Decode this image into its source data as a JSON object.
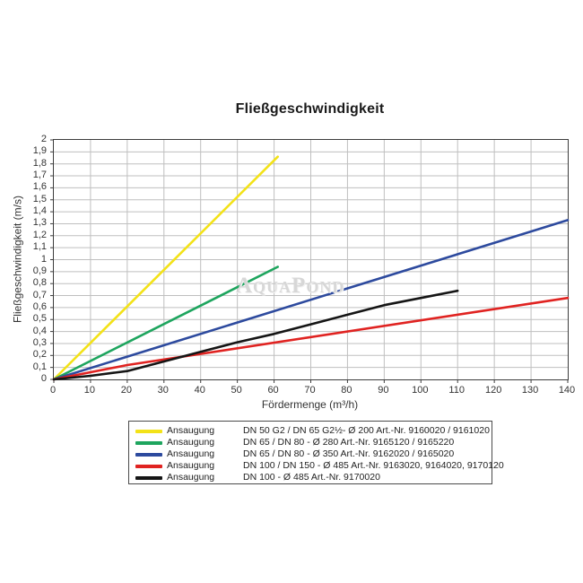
{
  "title": "Fließgeschwindigkeit",
  "watermark": "AquaPond",
  "axes": {
    "xlabel": "Fördermenge (m³/h)",
    "ylabel": "Fließgeschwindigkeit (m/s)"
  },
  "chart_data": {
    "type": "line",
    "title": "Fließgeschwindigkeit",
    "xlabel": "Fördermenge (m³/h)",
    "ylabel": "Fließgeschwindigkeit (m/s)",
    "xlim": [
      0,
      140
    ],
    "ylim": [
      0,
      2
    ],
    "grid": true,
    "legend_position": "bottom",
    "x_tick_labels": [
      "0",
      "10",
      "20",
      "30",
      "40",
      "50",
      "60",
      "70",
      "80",
      "90",
      "100",
      "110",
      "120",
      "130",
      "140"
    ],
    "y_tick_labels": [
      "2",
      "1,9",
      "1,8",
      "1,7",
      "1,6",
      "1,5",
      "1,4",
      "1,3",
      "1,2",
      "1,1",
      "1",
      "0,9",
      "0,8",
      "0,7",
      "0,6",
      "0,5",
      "0,4",
      "0,3",
      "0,2",
      "0,1",
      "0"
    ],
    "grid_color": "#bfbfbf",
    "series": [
      {
        "name": "Ansaugung DN 50 G2 / DN 65 G2½- Ø 200",
        "color": "#f3e218",
        "points": [
          [
            0,
            0
          ],
          [
            61,
            1.86
          ]
        ]
      },
      {
        "name": "Ansaugung DN 65 / DN 80 - Ø 280",
        "color": "#1ea55e",
        "points": [
          [
            0,
            0
          ],
          [
            61,
            0.94
          ]
        ]
      },
      {
        "name": "Ansaugung DN 65 / DN 80 - Ø 350",
        "color": "#2d4a9e",
        "points": [
          [
            0,
            0
          ],
          [
            140,
            1.33
          ]
        ]
      },
      {
        "name": "Ansaugung DN 100 / DN 150 - Ø 485",
        "color": "#e02321",
        "points": [
          [
            0,
            0
          ],
          [
            20,
            0.12
          ],
          [
            140,
            0.68
          ]
        ]
      },
      {
        "name": "Ansaugung DN 100 - Ø 485",
        "color": "#151515",
        "points": [
          [
            0,
            0
          ],
          [
            10,
            0.03
          ],
          [
            20,
            0.07
          ],
          [
            30,
            0.15
          ],
          [
            40,
            0.23
          ],
          [
            50,
            0.31
          ],
          [
            60,
            0.38
          ],
          [
            70,
            0.46
          ],
          [
            80,
            0.54
          ],
          [
            90,
            0.62
          ],
          [
            100,
            0.68
          ],
          [
            110,
            0.74
          ]
        ]
      }
    ]
  },
  "legend": {
    "items": [
      {
        "label": "Ansaugung",
        "color": "#f3e218",
        "description": "DN 50 G2 / DN 65 G2½- Ø 200 Art.-Nr. 9160020 / 9161020"
      },
      {
        "label": "Ansaugung",
        "color": "#1ea55e",
        "description": "DN 65 / DN 80 - Ø 280 Art.-Nr. 9165120 / 9165220"
      },
      {
        "label": "Ansaugung",
        "color": "#2d4a9e",
        "description": "DN 65 / DN 80 - Ø 350 Art.-Nr. 9162020 / 9165020"
      },
      {
        "label": "Ansaugung",
        "color": "#e02321",
        "description": "DN 100 / DN 150 - Ø 485 Art.-Nr. 9163020, 9164020, 9170120"
      },
      {
        "label": "Ansaugung",
        "color": "#151515",
        "description": "DN 100 - Ø 485 Art.-Nr. 9170020"
      }
    ]
  }
}
